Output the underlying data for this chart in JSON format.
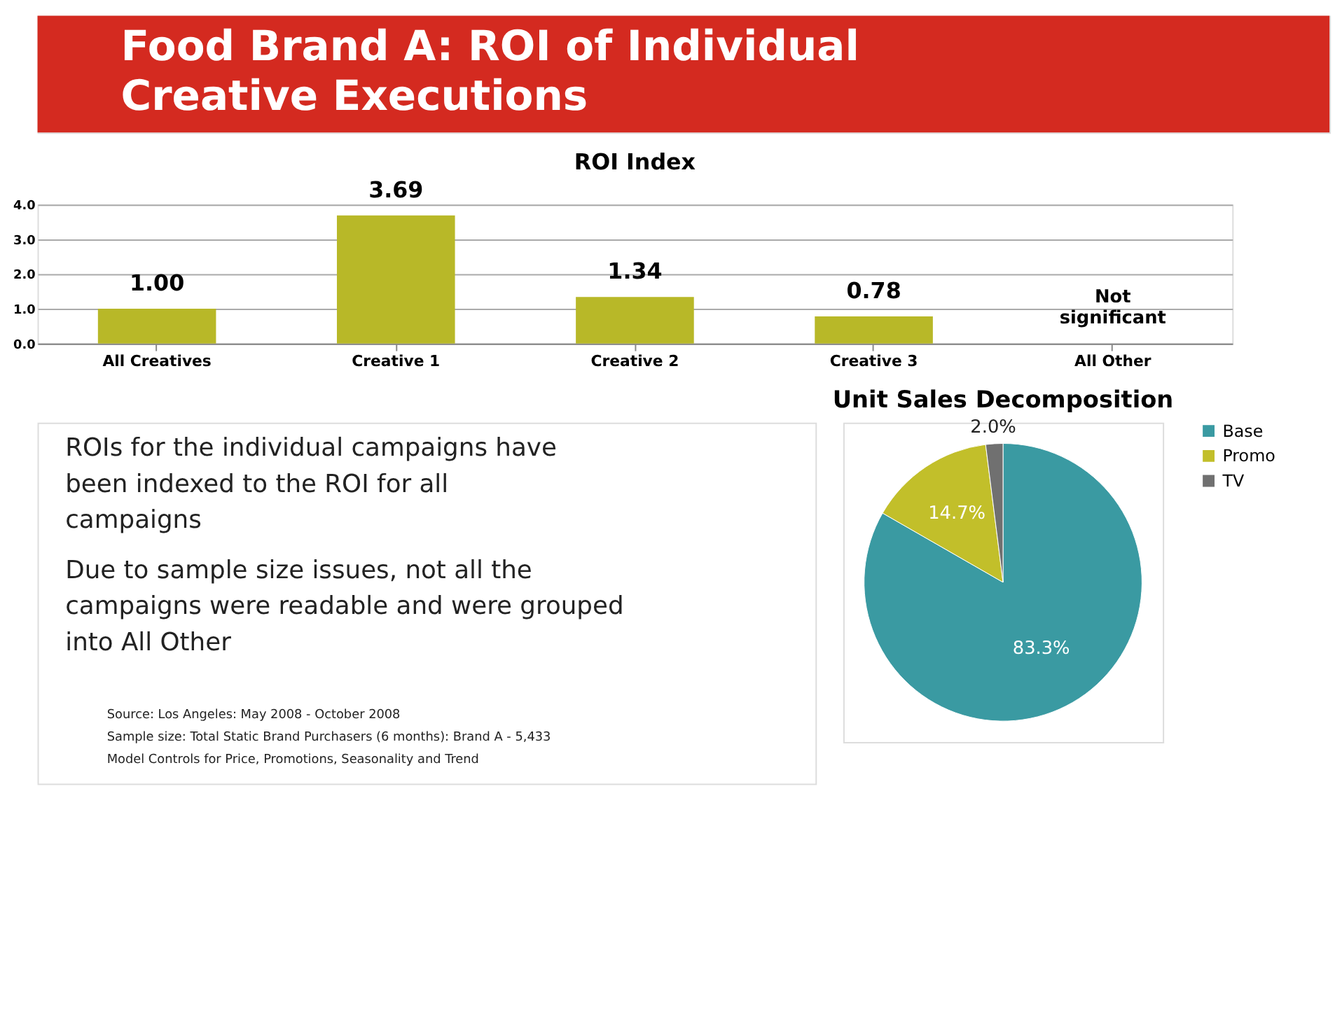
{
  "chart_data": [
    {
      "type": "other",
      "title": "Food Brand A: ROI of Individual Creative Executions",
      "color": "#d42a20"
    },
    {
      "type": "bar",
      "title": "ROI Index",
      "categories": [
        "All Creatives",
        "Creative 1",
        "Creative 2",
        "Creative 3",
        "All Other"
      ],
      "values": [
        1.0,
        3.69,
        1.34,
        0.78,
        null
      ],
      "color": "#b8b828",
      "value_labels": [
        "1.00",
        "3.69",
        "1.34",
        "0.78",
        null
      ],
      "ylim": [
        0,
        4
      ],
      "yticks": [
        {
          "value": 0,
          "label": "0.0"
        },
        {
          "value": 1,
          "label": "1.0"
        },
        {
          "value": 2,
          "label": "2.0"
        },
        {
          "value": 3,
          "label": "3.0"
        },
        {
          "value": 4,
          "label": "4.0"
        }
      ],
      "grid": "y",
      "annotations": [
        "Not significant"
      ]
    },
    {
      "type": "other",
      "annotations": [
        "ROIs for the individual campaigns have been indexed to the ROI for all campaigns",
        "Due to sample size issues, not all the campaigns were readable and were grouped into All Other",
        "Source: Los Angeles: May 2008 - October 2008",
        "Sample size: Total Static Brand Purchasers (6 months): Brand A - 5,433",
        "Model Controls for Price, Promotions, Seasonality and Trend"
      ]
    },
    {
      "type": "pie",
      "title": "Unit Sales Decomposition",
      "categories": [
        "Base",
        "Promo",
        "TV"
      ],
      "values": [
        83.3,
        14.7,
        2.0
      ],
      "colors": [
        "#3a9aa2",
        "#c2bf2a",
        "#707070"
      ],
      "value_labels": [
        "83.3%",
        "14.7%",
        "2.0%"
      ],
      "legend": "right"
    }
  ]
}
